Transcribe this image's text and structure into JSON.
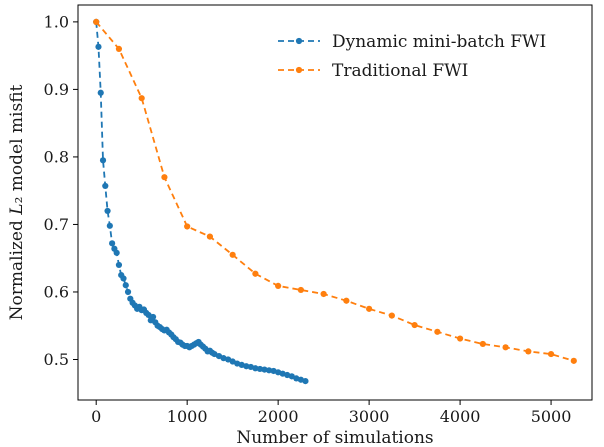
{
  "chart_data": {
    "type": "line",
    "title": "",
    "xlabel": "Number of simulations",
    "ylabel": "Normalized L₂ model misfit",
    "xlim": [
      -200,
      5450
    ],
    "ylim": [
      0.44,
      1.025
    ],
    "xticks": [
      0,
      1000,
      2000,
      3000,
      4000,
      5000
    ],
    "yticks": [
      0.5,
      0.6,
      0.7,
      0.8,
      0.9,
      1.0
    ],
    "xtick_labels": [
      "0",
      "1000",
      "2000",
      "3000",
      "4000",
      "5000"
    ],
    "ytick_labels": [
      "0.5",
      "0.6",
      "0.7",
      "0.8",
      "0.9",
      "1.0"
    ],
    "grid": false,
    "legend_position": "top-right",
    "series": [
      {
        "name": "Dynamic mini-batch FWI",
        "color": "#1f77b4",
        "line_style": "dashed",
        "marker": "circle",
        "x": [
          0,
          25,
          50,
          75,
          100,
          125,
          150,
          175,
          200,
          225,
          250,
          275,
          300,
          325,
          350,
          375,
          400,
          425,
          450,
          475,
          500,
          525,
          550,
          575,
          600,
          625,
          650,
          675,
          700,
          725,
          750,
          775,
          800,
          825,
          850,
          875,
          900,
          925,
          950,
          975,
          1000,
          1025,
          1050,
          1075,
          1100,
          1125,
          1150,
          1175,
          1200,
          1225,
          1250,
          1275,
          1300,
          1350,
          1400,
          1450,
          1500,
          1550,
          1600,
          1650,
          1700,
          1750,
          1800,
          1850,
          1900,
          1950,
          2000,
          2050,
          2100,
          2150,
          2200,
          2250,
          2300
        ],
        "y": [
          1.0,
          0.963,
          0.895,
          0.795,
          0.757,
          0.72,
          0.698,
          0.672,
          0.664,
          0.658,
          0.64,
          0.625,
          0.62,
          0.61,
          0.6,
          0.59,
          0.584,
          0.58,
          0.575,
          0.578,
          0.573,
          0.574,
          0.569,
          0.566,
          0.558,
          0.563,
          0.555,
          0.55,
          0.548,
          0.545,
          0.543,
          0.544,
          0.54,
          0.537,
          0.533,
          0.53,
          0.526,
          0.525,
          0.522,
          0.52,
          0.52,
          0.518,
          0.52,
          0.522,
          0.524,
          0.526,
          0.522,
          0.519,
          0.516,
          0.512,
          0.513,
          0.51,
          0.508,
          0.505,
          0.502,
          0.5,
          0.497,
          0.494,
          0.492,
          0.49,
          0.489,
          0.487,
          0.486,
          0.485,
          0.484,
          0.483,
          0.481,
          0.479,
          0.477,
          0.475,
          0.472,
          0.47,
          0.468
        ]
      },
      {
        "name": "Traditional FWI",
        "color": "#ff7f0e",
        "line_style": "dashed",
        "marker": "circle",
        "x": [
          0,
          250,
          500,
          750,
          1000,
          1250,
          1500,
          1750,
          2000,
          2250,
          2500,
          2750,
          3000,
          3250,
          3500,
          3750,
          4000,
          4250,
          4500,
          4750,
          5000,
          5250
        ],
        "y": [
          1.0,
          0.96,
          0.887,
          0.77,
          0.697,
          0.682,
          0.655,
          0.627,
          0.609,
          0.603,
          0.597,
          0.587,
          0.575,
          0.565,
          0.551,
          0.541,
          0.531,
          0.523,
          0.518,
          0.512,
          0.508,
          0.498
        ]
      }
    ]
  }
}
